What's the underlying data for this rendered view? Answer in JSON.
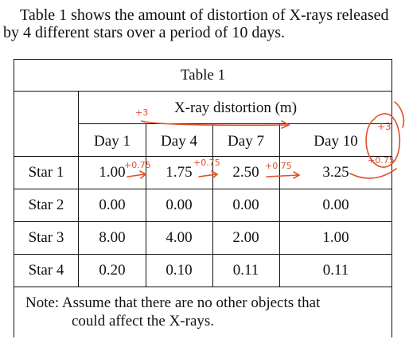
{
  "intro": {
    "line1": "Table 1 shows the amount of distortion of X-rays released",
    "line2": "by 4 different stars over a period of 10 days."
  },
  "table": {
    "caption": "Table 1",
    "group_header": "X-ray distortion (m)",
    "columns": [
      "Day 1",
      "Day 4",
      "Day 7",
      "Day 10"
    ],
    "rows": [
      {
        "label": "Star 1",
        "values": [
          "1.00",
          "1.75",
          "2.50",
          "3.25"
        ]
      },
      {
        "label": "Star 2",
        "values": [
          "0.00",
          "0.00",
          "0.00",
          "0.00"
        ]
      },
      {
        "label": "Star 3",
        "values": [
          "8.00",
          "4.00",
          "2.00",
          "1.00"
        ]
      },
      {
        "label": "Star 4",
        "values": [
          "0.20",
          "0.10",
          "0.11",
          "0.11"
        ]
      }
    ],
    "note_line1": "Note: Assume that there are no other objects that",
    "note_line2": "could affect the X-rays."
  },
  "annotations": {
    "header_plus": "+3",
    "increment": "+0.75",
    "ink_color": "#e0502a"
  }
}
